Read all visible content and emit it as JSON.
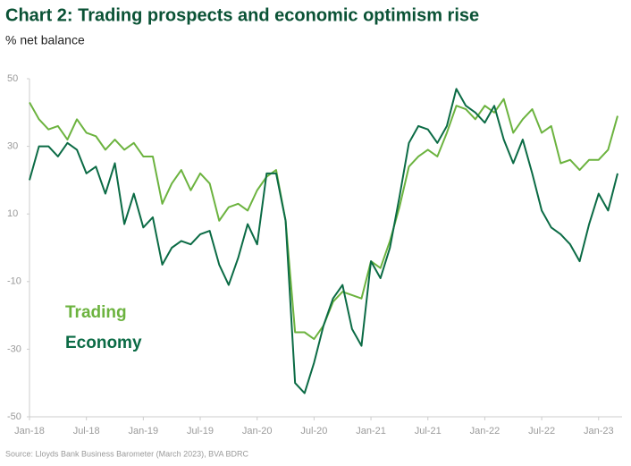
{
  "chart_data": {
    "type": "line",
    "title": "Chart 2: Trading prospects and economic optimism rise",
    "subtitle": "% net balance",
    "source": "Source: Lloyds Bank Business Barometer (March 2023), BVA BDRC",
    "categories": [
      "Jan-18",
      null,
      null,
      null,
      null,
      null,
      "Jul-18",
      null,
      null,
      null,
      null,
      null,
      "Jan-19",
      null,
      null,
      null,
      null,
      null,
      "Jul-19",
      null,
      null,
      null,
      null,
      null,
      "Jan-20",
      null,
      null,
      null,
      null,
      null,
      "Jul-20",
      null,
      null,
      null,
      null,
      null,
      "Jan-21",
      null,
      null,
      null,
      null,
      null,
      "Jul-21",
      null,
      null,
      null,
      null,
      null,
      "Jan-22",
      null,
      null,
      null,
      null,
      null,
      "Jul-22",
      null,
      null,
      null,
      null,
      null,
      "Jan-23",
      null,
      null
    ],
    "series": [
      {
        "name": "Trading",
        "color": "#6cb33f",
        "values": [
          43,
          38,
          35,
          36,
          32,
          38,
          34,
          33,
          29,
          32,
          29,
          31,
          27,
          27,
          13,
          19,
          23,
          17,
          22,
          19,
          8,
          12,
          13,
          11,
          17,
          21,
          23,
          8,
          -25,
          -25,
          -27,
          -23,
          -16,
          -13,
          -14,
          -15,
          -4,
          -6,
          2,
          12,
          24,
          27,
          29,
          27,
          34,
          42,
          41,
          38,
          42,
          40,
          44,
          34,
          38,
          41,
          34,
          36,
          25,
          26,
          23,
          26,
          26,
          29,
          39
        ]
      },
      {
        "name": "Economy",
        "color": "#0b6b45",
        "values": [
          20,
          30,
          30,
          27,
          31,
          29,
          22,
          24,
          16,
          25,
          7,
          16,
          6,
          9,
          -5,
          0,
          2,
          1,
          4,
          5,
          -5,
          -11,
          -3,
          7,
          1,
          22,
          22,
          8,
          -40,
          -43,
          -34,
          -23,
          -15,
          -11,
          -24,
          -29,
          -4,
          -9,
          0,
          15,
          31,
          36,
          35,
          31,
          36,
          47,
          42,
          40,
          37,
          42,
          32,
          25,
          32,
          22,
          11,
          6,
          4,
          1,
          -4,
          7,
          16,
          11,
          22
        ]
      }
    ],
    "ylim": [
      -50,
      50
    ],
    "yticks": [
      -50,
      -30,
      -10,
      10,
      30,
      50
    ],
    "grid": false,
    "legend": "lower-left"
  }
}
